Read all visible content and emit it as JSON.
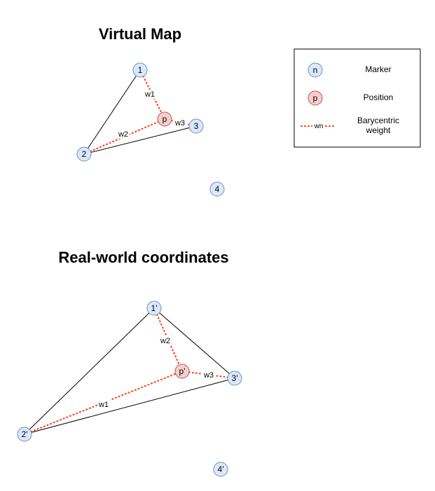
{
  "virtual_map": {
    "title": "Virtual Map",
    "markers": [
      "1",
      "2",
      "3",
      "4"
    ],
    "position": "p",
    "weights": [
      "w1",
      "w2",
      "w3"
    ]
  },
  "real_world": {
    "title": "Real-world coordinates",
    "markers": [
      "1'",
      "2'",
      "3'",
      "4'"
    ],
    "position": "p'",
    "weights": [
      "w2",
      "w1",
      "w3"
    ]
  },
  "legend": {
    "marker_symbol": "n",
    "marker_label": "Marker",
    "position_symbol": "p",
    "position_label": "Position",
    "weight_symbol": "wn",
    "weight_label_line1": "Barycentric",
    "weight_label_line2": "weight"
  },
  "colors": {
    "marker_fill": "#dae8fc",
    "marker_stroke": "#6c8ebf",
    "position_fill": "#f8cecc",
    "position_stroke": "#b85450",
    "weight_line": "#ff3300"
  }
}
